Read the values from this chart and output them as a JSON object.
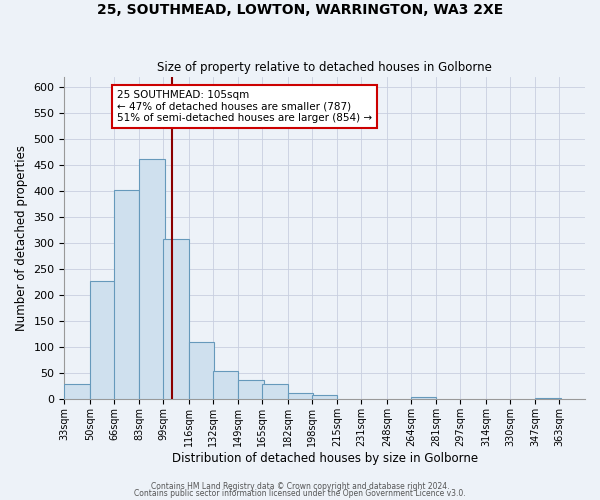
{
  "title": "25, SOUTHMEAD, LOWTON, WARRINGTON, WA3 2XE",
  "subtitle": "Size of property relative to detached houses in Golborne",
  "xlabel": "Distribution of detached houses by size in Golborne",
  "ylabel": "Number of detached properties",
  "bar_color": "#cfe0ee",
  "bar_edge_color": "#6699bb",
  "background_color": "#edf2f8",
  "grid_color": "#c8cfe0",
  "bins_left": [
    33,
    50,
    66,
    83,
    99,
    116,
    132,
    149,
    165,
    182,
    198,
    215,
    231,
    248,
    264,
    281,
    297,
    314,
    330,
    347
  ],
  "bin_width": 17,
  "bar_heights": [
    30,
    228,
    403,
    462,
    308,
    110,
    54,
    37,
    29,
    13,
    8,
    0,
    0,
    0,
    5,
    0,
    0,
    0,
    0,
    3
  ],
  "vline_x": 105,
  "vline_color": "#8b0000",
  "annotation_line1": "25 SOUTHMEAD: 105sqm",
  "annotation_line2": "← 47% of detached houses are smaller (787)",
  "annotation_line3": "51% of semi-detached houses are larger (854) →",
  "annotation_box_color": "#ffffff",
  "annotation_box_edge_color": "#cc0000",
  "ylim": [
    0,
    620
  ],
  "yticks": [
    0,
    50,
    100,
    150,
    200,
    250,
    300,
    350,
    400,
    450,
    500,
    550,
    600
  ],
  "xtick_labels": [
    "33sqm",
    "50sqm",
    "66sqm",
    "83sqm",
    "99sqm",
    "116sqm",
    "132sqm",
    "149sqm",
    "165sqm",
    "182sqm",
    "198sqm",
    "215sqm",
    "231sqm",
    "248sqm",
    "264sqm",
    "281sqm",
    "297sqm",
    "314sqm",
    "330sqm",
    "347sqm",
    "363sqm"
  ],
  "footer_line1": "Contains HM Land Registry data © Crown copyright and database right 2024.",
  "footer_line2": "Contains public sector information licensed under the Open Government Licence v3.0."
}
